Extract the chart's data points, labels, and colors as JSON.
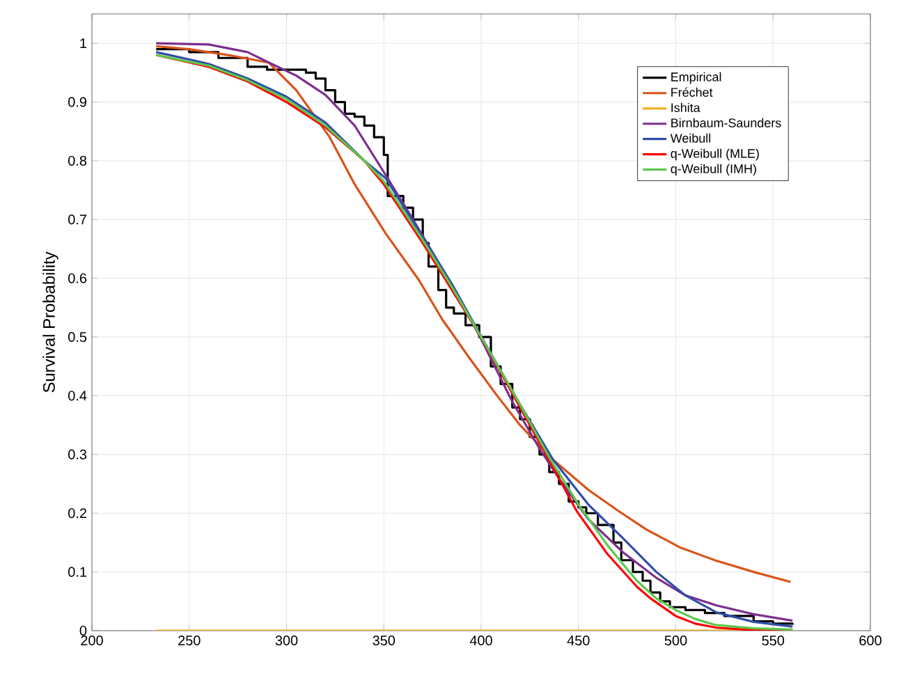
{
  "chart_data": {
    "type": "line",
    "ylabel": "Survival Probability",
    "xlim": [
      200,
      600
    ],
    "ylim": [
      0,
      1.05
    ],
    "xticks": [
      200,
      250,
      300,
      350,
      400,
      450,
      500,
      550,
      600
    ],
    "yticks": [
      0,
      0.1,
      0.2,
      0.3,
      0.4,
      0.5,
      0.6,
      0.7,
      0.8,
      0.9,
      1
    ],
    "grid": true,
    "legend": "top right",
    "line_style": "solid",
    "marker": "none",
    "series": [
      {
        "name": "Empirical",
        "type": "step",
        "color": "#000000",
        "x": [
          233,
          250,
          265,
          280,
          290,
          310,
          315,
          320,
          325,
          330,
          335,
          340,
          345,
          350,
          352,
          360,
          365,
          370,
          373,
          378,
          382,
          386,
          392,
          399,
          405,
          410,
          416,
          420,
          425,
          430,
          435,
          440,
          445,
          450,
          454,
          460,
          468,
          472,
          478,
          483,
          487,
          492,
          497,
          505,
          515,
          525,
          540,
          550,
          560
        ],
        "values": [
          0.99,
          0.985,
          0.975,
          0.96,
          0.955,
          0.95,
          0.94,
          0.92,
          0.9,
          0.88,
          0.875,
          0.86,
          0.84,
          0.81,
          0.74,
          0.72,
          0.7,
          0.66,
          0.62,
          0.58,
          0.55,
          0.54,
          0.52,
          0.5,
          0.45,
          0.42,
          0.38,
          0.36,
          0.33,
          0.3,
          0.27,
          0.25,
          0.22,
          0.21,
          0.2,
          0.18,
          0.15,
          0.12,
          0.1,
          0.085,
          0.065,
          0.05,
          0.04,
          0.035,
          0.03,
          0.025,
          0.016,
          0.012,
          0.01
        ]
      },
      {
        "name": "Fréchet",
        "color": "#d95319",
        "x": [
          233,
          250,
          270,
          291,
          305,
          322,
          335,
          351,
          368,
          380,
          394,
          408,
          420,
          437,
          455,
          470,
          485,
          502,
          520,
          540,
          559
        ],
        "values": [
          0.995,
          0.99,
          0.98,
          0.967,
          0.92,
          0.841,
          0.76,
          0.676,
          0.597,
          0.53,
          0.464,
          0.401,
          0.35,
          0.291,
          0.24,
          0.205,
          0.172,
          0.142,
          0.12,
          0.1,
          0.083
        ]
      },
      {
        "name": "Ishita",
        "color": "#edb120",
        "x": [
          233,
          300,
          400,
          500,
          560
        ],
        "values": [
          0,
          0,
          0,
          0,
          0
        ]
      },
      {
        "name": "Birnbaum-Saunders",
        "color": "#7e2f8e",
        "x": [
          233,
          260,
          280,
          291,
          305,
          320,
          335,
          349,
          365,
          382,
          399,
          416,
          430,
          440,
          455,
          473,
          490,
          505,
          521,
          540,
          560
        ],
        "values": [
          1.0,
          0.998,
          0.985,
          0.967,
          0.945,
          0.912,
          0.86,
          0.786,
          0.7,
          0.605,
          0.503,
          0.39,
          0.31,
          0.259,
          0.19,
          0.133,
          0.09,
          0.06,
          0.043,
          0.028,
          0.017
        ]
      },
      {
        "name": "Weibull",
        "color": "#2f4ea8",
        "x": [
          233,
          260,
          280,
          300,
          320,
          340,
          351,
          370,
          385,
          401,
          420,
          437,
          455,
          473,
          490,
          505,
          521,
          540,
          560
        ],
        "values": [
          0.985,
          0.965,
          0.94,
          0.909,
          0.865,
          0.8,
          0.77,
          0.67,
          0.59,
          0.495,
          0.385,
          0.291,
          0.215,
          0.157,
          0.1,
          0.06,
          0.031,
          0.015,
          0.007
        ]
      },
      {
        "name": "q-Weibull (MLE)",
        "color": "#ff0000",
        "x": [
          233,
          260,
          280,
          300,
          320,
          340,
          350,
          370,
          385,
          400,
          420,
          435,
          449,
          465,
          480,
          487,
          500,
          510,
          521,
          540,
          560
        ],
        "values": [
          0.98,
          0.96,
          0.935,
          0.9,
          0.857,
          0.8,
          0.76,
          0.66,
          0.58,
          0.5,
          0.38,
          0.29,
          0.204,
          0.13,
          0.075,
          0.055,
          0.025,
          0.012,
          0.005,
          0.001,
          0
        ]
      },
      {
        "name": "q-Weibull (IMH)",
        "color": "#5cc84a",
        "x": [
          233,
          260,
          280,
          300,
          320,
          340,
          350,
          370,
          385,
          400,
          420,
          435,
          450,
          465,
          480,
          490,
          500,
          510,
          520,
          540,
          560
        ],
        "values": [
          0.98,
          0.962,
          0.937,
          0.905,
          0.86,
          0.8,
          0.765,
          0.665,
          0.585,
          0.5,
          0.385,
          0.295,
          0.215,
          0.145,
          0.085,
          0.055,
          0.035,
          0.02,
          0.01,
          0.004,
          0.002
        ]
      }
    ]
  }
}
